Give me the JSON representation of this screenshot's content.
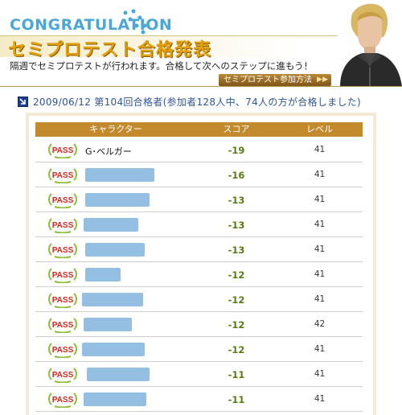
{
  "banner": {
    "congrats": "CONGRATULATION",
    "headline": "セミプロテスト合格発表",
    "subline": "隔週でセミプロテストが行われます。合格して次へのステップに進もう！",
    "join_button": "セミプロテスト参加方法",
    "join_arrows": "▶▶"
  },
  "result_line": "2009/06/12 第104回合格者(参加者128人中、74人の方が合格しました)",
  "table": {
    "headers": {
      "character": "キャラクター",
      "score": "スコア",
      "level": "レベル"
    },
    "badge_text": "PASS",
    "rows": [
      {
        "name": "G･ベルガー",
        "score": "-19",
        "level": "41"
      },
      {
        "name": "",
        "score": "-16",
        "level": "41"
      },
      {
        "name": "",
        "score": "-13",
        "level": "41"
      },
      {
        "name": "",
        "score": "-13",
        "level": "41"
      },
      {
        "name": "",
        "score": "-13",
        "level": "41"
      },
      {
        "name": "",
        "score": "-12",
        "level": "41"
      },
      {
        "name": "",
        "score": "-12",
        "level": "41"
      },
      {
        "name": "",
        "score": "-12",
        "level": "42"
      },
      {
        "name": "",
        "score": "-12",
        "level": "41"
      },
      {
        "name": "",
        "score": "-11",
        "level": "41"
      },
      {
        "name": "",
        "score": "-11",
        "level": "41"
      }
    ]
  },
  "colors": {
    "accent_blue": "#4aa7d8",
    "headline_gold": "#e2a10c",
    "table_header": "#c3892d",
    "score_green": "#5a7a12",
    "pass_red": "#d8261c"
  },
  "icons": {
    "pass_badge": "pass-laurel-badge",
    "result_marker": "arrow-square-icon"
  }
}
